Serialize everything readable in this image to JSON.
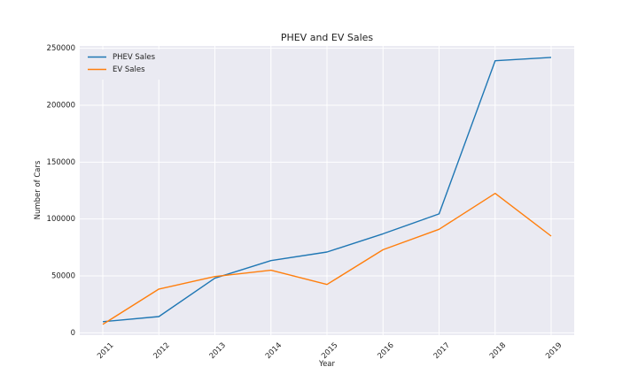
{
  "chart_data": {
    "type": "line",
    "title": "PHEV and EV Sales",
    "xlabel": "Year",
    "ylabel": "Number of Cars",
    "x": [
      "2011",
      "2012",
      "2013",
      "2014",
      "2015",
      "2016",
      "2017",
      "2018",
      "2019"
    ],
    "ylim": [
      -2000,
      252000
    ],
    "yticks": [
      0,
      50000,
      100000,
      150000,
      200000,
      250000
    ],
    "ytick_labels": [
      "0",
      "50000",
      "100000",
      "150000",
      "200000",
      "250000"
    ],
    "grid": true,
    "legend": "top-left",
    "series": [
      {
        "name": "PHEV Sales",
        "color": "#1f77b4",
        "values": [
          9800,
          14300,
          48000,
          63500,
          71000,
          87000,
          104500,
          239000,
          242000
        ]
      },
      {
        "name": "EV Sales",
        "color": "#ff7f0e",
        "values": [
          7500,
          38500,
          49500,
          55000,
          42500,
          73000,
          91000,
          122500,
          85000
        ]
      }
    ]
  }
}
